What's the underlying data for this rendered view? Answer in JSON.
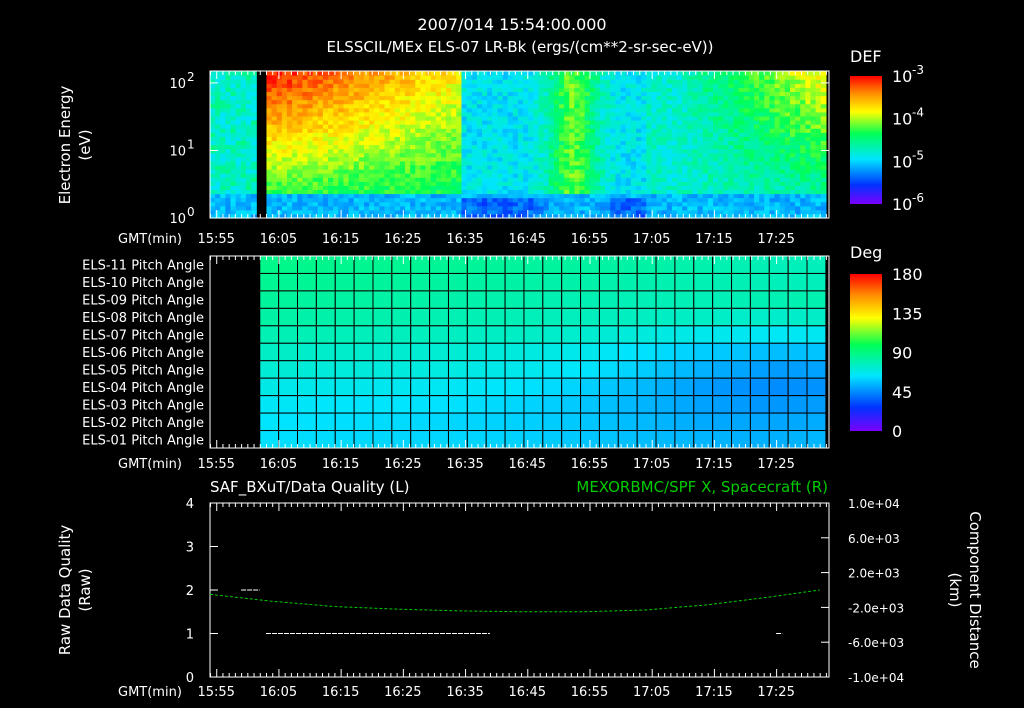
{
  "title": "2007/014 15:54:00.000",
  "subtitle": "ELSSCIL/MEx ELS-07 LR-Bk  (ergs/(cm**2-sr-sec-eV))",
  "time_axis_label": "GMT(min)",
  "time_ticks": [
    "15:55",
    "16:05",
    "16:15",
    "16:25",
    "16:35",
    "16:45",
    "16:55",
    "17:05",
    "17:15",
    "17:25"
  ],
  "colors": {
    "background": "#000000",
    "axis": "#ffffff",
    "green_trace": "#00cc00",
    "gap": "#000000"
  },
  "chart_data": [
    {
      "type": "heatmap",
      "name": "electron-spectrogram",
      "ylabel": [
        "Electron Energy",
        "(eV)"
      ],
      "y_scale": "log",
      "ylim": [
        1,
        150
      ],
      "y_ticks": [
        {
          "value": 1,
          "mantissa": "10",
          "exp": "0"
        },
        {
          "value": 10,
          "mantissa": "10",
          "exp": "1"
        },
        {
          "value": 100,
          "mantissa": "10",
          "exp": "2"
        }
      ],
      "colorbar": {
        "label": "DEF",
        "scale": "log",
        "range": [
          1e-06,
          0.001
        ],
        "ticks": [
          {
            "mantissa": "10",
            "exp": "-3"
          },
          {
            "mantissa": "10",
            "exp": "-4"
          },
          {
            "mantissa": "10",
            "exp": "-5"
          },
          {
            "mantissa": "10",
            "exp": "-6"
          }
        ]
      },
      "data_gaps_min": [
        [
          7,
          9
        ]
      ]
    },
    {
      "type": "heatmap",
      "name": "pitch-angle",
      "rows": [
        "ELS-11 Pitch Angle",
        "ELS-10 Pitch Angle",
        "ELS-09 Pitch Angle",
        "ELS-08 Pitch Angle",
        "ELS-07 Pitch Angle",
        "ELS-06 Pitch Angle",
        "ELS-05 Pitch Angle",
        "ELS-04 Pitch Angle",
        "ELS-03 Pitch Angle",
        "ELS-02 Pitch Angle",
        "ELS-01 Pitch Angle"
      ],
      "row_values_deg": [
        [
          88,
          87,
          86,
          85,
          84,
          83,
          82,
          80,
          78,
          77
        ],
        [
          86,
          85,
          84,
          83,
          82,
          81,
          80,
          79,
          78,
          77
        ],
        [
          84,
          83,
          82,
          81,
          80,
          79,
          78,
          78,
          79,
          80
        ],
        [
          82,
          81,
          80,
          79,
          78,
          77,
          76,
          75,
          74,
          75
        ],
        [
          79,
          78,
          77,
          76,
          75,
          73,
          70,
          67,
          65,
          66
        ],
        [
          75,
          74,
          73,
          72,
          70,
          67,
          62,
          58,
          55,
          57
        ],
        [
          72,
          71,
          70,
          69,
          67,
          63,
          58,
          52,
          48,
          50
        ],
        [
          68,
          67,
          66,
          65,
          63,
          59,
          54,
          48,
          45,
          47
        ],
        [
          65,
          64,
          63,
          62,
          60,
          57,
          53,
          49,
          47,
          49
        ],
        [
          63,
          62,
          61,
          60,
          59,
          57,
          54,
          51,
          50,
          52
        ],
        [
          62,
          61,
          60,
          60,
          59,
          57,
          55,
          53,
          52,
          54
        ]
      ],
      "colorbar": {
        "label": "Deg",
        "range": [
          0,
          180
        ],
        "ticks": [
          "180",
          "135",
          "90",
          "45",
          "0"
        ]
      },
      "data_range_min": [
        8,
        99
      ]
    },
    {
      "type": "line",
      "name": "data-quality-and-spacecraft-x",
      "left_title": "SAF_BXuT/Data Quality (L)",
      "right_title": "MEXORBMC/SPF X, Spacecraft (R)",
      "ylabel_left": [
        "Raw Data Quality",
        "(Raw)"
      ],
      "ylabel_right": [
        "Component Distance",
        "(km)"
      ],
      "ylim_left": [
        0,
        4
      ],
      "left_ticks": [
        "0",
        "1",
        "2",
        "3",
        "4"
      ],
      "ylim_right": [
        -10000,
        10000
      ],
      "right_ticks": [
        "-1.0e+04",
        "-6.0e+03",
        "-2.0e+03",
        "2.0e+03",
        "6.0e+03",
        "1.0e+04"
      ],
      "series": [
        {
          "name": "Data Quality",
          "color": "#ffffff",
          "segments": [
            {
              "x": [
                5,
                8
              ],
              "y": [
                2,
                2
              ]
            },
            {
              "x": [
                9,
                45
              ],
              "y": [
                1,
                1
              ]
            },
            {
              "x": [
                46,
                91
              ],
              "y": [
                0,
                0
              ]
            },
            {
              "x": [
                91,
                92
              ],
              "y": [
                1,
                1
              ]
            }
          ]
        },
        {
          "name": "Spacecraft X",
          "color": "#00cc00",
          "x": [
            0,
            10,
            20,
            30,
            40,
            50,
            60,
            70,
            80,
            90,
            98
          ],
          "y": [
            -500,
            -1300,
            -1900,
            -2200,
            -2400,
            -2500,
            -2500,
            -2300,
            -1700,
            -800,
            0
          ]
        }
      ]
    }
  ]
}
